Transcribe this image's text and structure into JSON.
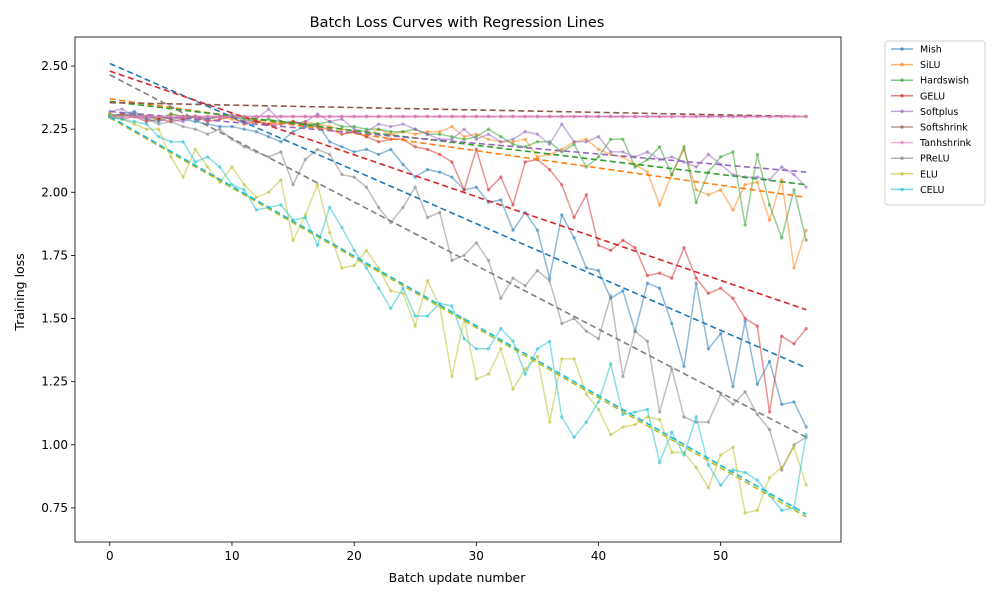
{
  "chart_data": {
    "type": "line",
    "title": "Batch Loss Curves with Regression Lines",
    "xlabel": "Batch update number",
    "ylabel": "Training loss",
    "xlim": [
      -2.85,
      59.85
    ],
    "ylim": [
      0.615,
      2.615
    ],
    "xticks": [
      0,
      10,
      20,
      30,
      40,
      50
    ],
    "yticks": [
      0.75,
      1.0,
      1.25,
      1.5,
      1.75,
      2.0,
      2.25,
      2.5
    ],
    "ytick_labels": [
      "0.75",
      "1.00",
      "1.25",
      "1.50",
      "1.75",
      "2.00",
      "2.25",
      "2.50"
    ],
    "grid": false,
    "legend_position": "outside-top-right",
    "x": [
      0,
      1,
      2,
      3,
      4,
      5,
      6,
      7,
      8,
      9,
      10,
      11,
      12,
      13,
      14,
      15,
      16,
      17,
      18,
      19,
      20,
      21,
      22,
      23,
      24,
      25,
      26,
      27,
      28,
      29,
      30,
      31,
      32,
      33,
      34,
      35,
      36,
      37,
      38,
      39,
      40,
      41,
      42,
      43,
      44,
      45,
      46,
      47,
      48,
      49,
      50,
      51,
      52,
      53,
      54,
      55,
      56,
      57
    ],
    "series": [
      {
        "name": "Mish",
        "color": "#1f77b4",
        "values": [
          2.3,
          2.31,
          2.32,
          2.29,
          2.28,
          2.3,
          2.29,
          2.28,
          2.27,
          2.26,
          2.26,
          2.25,
          2.24,
          2.22,
          2.2,
          2.24,
          2.26,
          2.27,
          2.2,
          2.18,
          2.16,
          2.17,
          2.15,
          2.17,
          2.11,
          2.06,
          2.09,
          2.08,
          2.06,
          2.01,
          2.02,
          1.96,
          1.97,
          1.85,
          1.92,
          1.85,
          1.66,
          1.91,
          1.82,
          1.7,
          1.69,
          1.58,
          1.61,
          1.45,
          1.64,
          1.62,
          1.48,
          1.31,
          1.64,
          1.38,
          1.44,
          1.23,
          1.49,
          1.24,
          1.33,
          1.16,
          1.17,
          1.07
        ],
        "reg": [
          2.51,
          1.305
        ]
      },
      {
        "name": "SiLU",
        "color": "#ff7f0e",
        "values": [
          2.3,
          2.31,
          2.3,
          2.3,
          2.29,
          2.31,
          2.3,
          2.3,
          2.29,
          2.3,
          2.29,
          2.28,
          2.28,
          2.27,
          2.28,
          2.27,
          2.28,
          2.27,
          2.26,
          2.25,
          2.24,
          2.22,
          2.25,
          2.23,
          2.24,
          2.23,
          2.24,
          2.24,
          2.26,
          2.22,
          2.23,
          2.21,
          2.2,
          2.2,
          2.21,
          2.14,
          2.15,
          2.17,
          2.2,
          2.21,
          2.17,
          2.15,
          2.14,
          2.11,
          2.08,
          1.95,
          2.07,
          2.17,
          2.01,
          1.99,
          2.01,
          1.93,
          2.03,
          2.04,
          1.89,
          2.05,
          1.7,
          1.85
        ],
        "reg": [
          2.37,
          1.98
        ]
      },
      {
        "name": "Hardswish",
        "color": "#2ca02c",
        "values": [
          2.31,
          2.3,
          2.31,
          2.3,
          2.29,
          2.31,
          2.3,
          2.3,
          2.29,
          2.3,
          2.3,
          2.29,
          2.28,
          2.29,
          2.28,
          2.28,
          2.27,
          2.27,
          2.28,
          2.26,
          2.26,
          2.25,
          2.25,
          2.24,
          2.24,
          2.25,
          2.23,
          2.23,
          2.22,
          2.21,
          2.22,
          2.25,
          2.22,
          2.19,
          2.18,
          2.2,
          2.2,
          2.16,
          2.19,
          2.1,
          2.14,
          2.21,
          2.21,
          2.1,
          2.13,
          2.18,
          2.07,
          2.18,
          1.96,
          2.08,
          2.14,
          2.16,
          1.87,
          2.15,
          1.95,
          1.82,
          2.01,
          1.81
        ],
        "reg": [
          2.36,
          2.03
        ]
      },
      {
        "name": "GELU",
        "color": "#d62728",
        "values": [
          2.3,
          2.29,
          2.3,
          2.28,
          2.29,
          2.28,
          2.29,
          2.3,
          2.28,
          2.29,
          2.3,
          2.27,
          2.28,
          2.27,
          2.27,
          2.28,
          2.27,
          2.26,
          2.25,
          2.23,
          2.24,
          2.22,
          2.2,
          2.21,
          2.21,
          2.18,
          2.17,
          2.15,
          2.12,
          2.01,
          2.17,
          2.01,
          2.06,
          1.95,
          2.12,
          2.13,
          2.09,
          2.03,
          1.9,
          1.99,
          1.79,
          1.77,
          1.81,
          1.78,
          1.67,
          1.68,
          1.66,
          1.78,
          1.66,
          1.6,
          1.62,
          1.58,
          1.5,
          1.47,
          1.13,
          1.43,
          1.4,
          1.46
        ],
        "reg": [
          2.48,
          1.535
        ]
      },
      {
        "name": "Softplus",
        "color": "#9467bd",
        "values": [
          2.32,
          2.33,
          2.3,
          2.29,
          2.3,
          2.29,
          2.28,
          2.3,
          2.29,
          2.3,
          2.31,
          2.28,
          2.29,
          2.33,
          2.28,
          2.27,
          2.28,
          2.31,
          2.28,
          2.29,
          2.25,
          2.24,
          2.27,
          2.26,
          2.27,
          2.25,
          2.23,
          2.21,
          2.21,
          2.25,
          2.21,
          2.23,
          2.2,
          2.21,
          2.24,
          2.23,
          2.19,
          2.27,
          2.2,
          2.2,
          2.22,
          2.16,
          2.16,
          2.14,
          2.16,
          2.13,
          2.14,
          2.12,
          2.1,
          2.15,
          2.11,
          2.07,
          2.06,
          2.06,
          2.05,
          2.1,
          2.07,
          2.02
        ],
        "reg": [
          2.32,
          2.08
        ]
      },
      {
        "name": "Softshrink",
        "color": "#8c564b",
        "values": [
          2.3,
          2.31,
          2.3,
          2.3,
          2.3,
          2.29,
          2.3,
          2.3,
          2.3,
          2.3,
          2.3,
          2.3,
          2.3,
          2.3,
          2.3,
          2.3,
          2.3,
          2.3,
          2.3,
          2.3,
          2.3,
          2.3,
          2.3,
          2.3,
          2.3,
          2.3,
          2.3,
          2.3,
          2.3,
          2.3,
          2.3,
          2.3,
          2.3,
          2.3,
          2.3,
          2.3,
          2.3,
          2.3,
          2.3,
          2.3,
          2.3,
          2.3,
          2.3,
          2.3,
          2.3,
          2.3,
          2.3,
          2.3,
          2.3,
          2.3,
          2.3,
          2.3,
          2.3,
          2.3,
          2.3,
          2.3,
          2.3,
          2.3
        ],
        "reg": [
          2.355,
          2.3
        ]
      },
      {
        "name": "Tanhshrink",
        "color": "#e377c2",
        "values": [
          2.3,
          2.3,
          2.3,
          2.3,
          2.3,
          2.3,
          2.3,
          2.3,
          2.3,
          2.3,
          2.3,
          2.3,
          2.3,
          2.3,
          2.3,
          2.3,
          2.3,
          2.3,
          2.3,
          2.3,
          2.3,
          2.3,
          2.3,
          2.3,
          2.3,
          2.3,
          2.3,
          2.3,
          2.3,
          2.3,
          2.3,
          2.3,
          2.3,
          2.3,
          2.3,
          2.3,
          2.3,
          2.3,
          2.3,
          2.3,
          2.3,
          2.3,
          2.3,
          2.3,
          2.3,
          2.3,
          2.3,
          2.3,
          2.3,
          2.3,
          2.3,
          2.3,
          2.3,
          2.3,
          2.3,
          2.3,
          2.3,
          2.3
        ],
        "reg": [
          2.3,
          2.3
        ]
      },
      {
        "name": "PReLU",
        "color": "#7f7f7f",
        "values": [
          2.31,
          2.3,
          2.31,
          2.29,
          2.27,
          2.28,
          2.26,
          2.25,
          2.23,
          2.25,
          2.21,
          2.18,
          2.16,
          2.14,
          2.16,
          2.03,
          2.13,
          2.17,
          2.15,
          2.07,
          2.06,
          2.02,
          1.94,
          1.88,
          1.94,
          2.02,
          1.9,
          1.92,
          1.73,
          1.75,
          1.8,
          1.73,
          1.58,
          1.66,
          1.63,
          1.69,
          1.65,
          1.48,
          1.5,
          1.45,
          1.42,
          1.59,
          1.27,
          1.45,
          1.41,
          1.13,
          1.3,
          1.11,
          1.09,
          1.09,
          1.2,
          1.16,
          1.21,
          1.12,
          1.06,
          0.9,
          1.0,
          1.03
        ],
        "reg": [
          2.465,
          1.03
        ]
      },
      {
        "name": "ELU",
        "color": "#bcbd22",
        "values": [
          2.31,
          2.29,
          2.27,
          2.25,
          2.25,
          2.14,
          2.06,
          2.17,
          2.1,
          2.04,
          2.1,
          2.03,
          1.98,
          2.0,
          2.05,
          1.81,
          1.91,
          2.03,
          1.84,
          1.7,
          1.71,
          1.77,
          1.7,
          1.61,
          1.6,
          1.47,
          1.65,
          1.55,
          1.27,
          1.5,
          1.26,
          1.28,
          1.38,
          1.22,
          1.3,
          1.35,
          1.09,
          1.34,
          1.34,
          1.2,
          1.14,
          1.04,
          1.07,
          1.08,
          1.11,
          1.1,
          0.97,
          0.97,
          0.91,
          0.83,
          0.96,
          0.99,
          0.73,
          0.74,
          0.87,
          0.91,
          0.99,
          0.84
        ],
        "reg": [
          2.295,
          0.715
        ]
      },
      {
        "name": "CELU",
        "color": "#17becf",
        "values": [
          2.3,
          2.29,
          2.28,
          2.27,
          2.22,
          2.2,
          2.2,
          2.12,
          2.14,
          2.1,
          2.03,
          2.01,
          1.93,
          1.94,
          1.95,
          1.89,
          1.9,
          1.79,
          1.94,
          1.86,
          1.77,
          1.7,
          1.62,
          1.54,
          1.62,
          1.51,
          1.51,
          1.56,
          1.55,
          1.42,
          1.38,
          1.38,
          1.46,
          1.41,
          1.28,
          1.38,
          1.41,
          1.11,
          1.03,
          1.09,
          1.17,
          1.32,
          1.12,
          1.13,
          1.14,
          0.93,
          1.05,
          0.96,
          1.11,
          0.92,
          0.84,
          0.9,
          0.89,
          0.86,
          0.8,
          0.74,
          0.75,
          1.04
        ],
        "reg": [
          2.3,
          0.725
        ]
      }
    ]
  }
}
